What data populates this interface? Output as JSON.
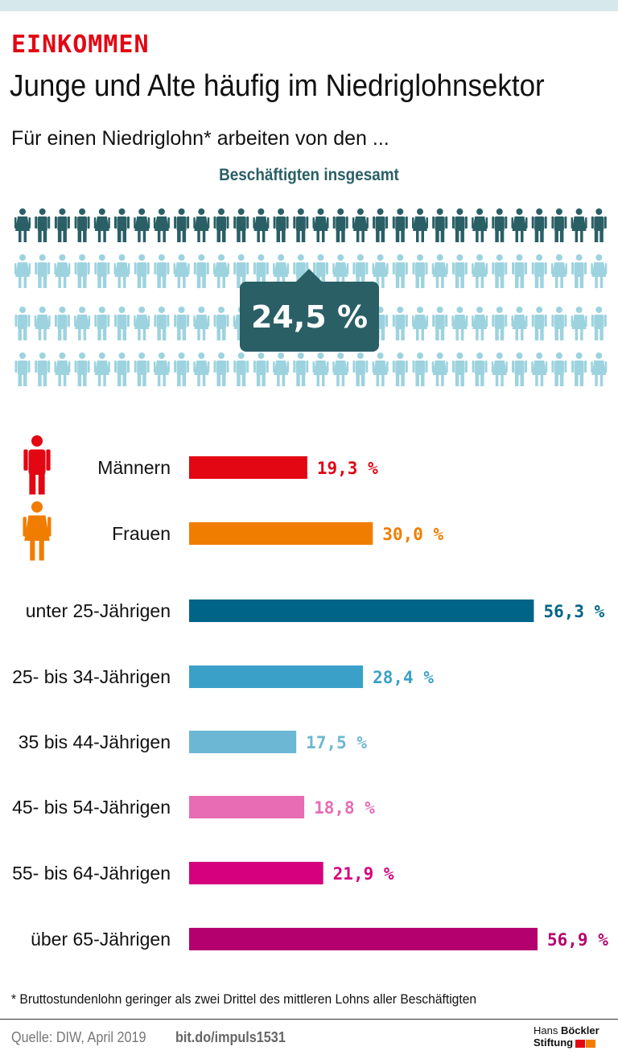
{
  "header": {
    "kicker": "EINKOMMEN",
    "title": "Junge und Alte häufig im Niedriglohnsektor",
    "subtitle": "Für einen Niedriglohn* arbeiten von den ..."
  },
  "total": {
    "label": "Beschäftigten insgesamt",
    "value_label": "24,5 %",
    "value": 24.5,
    "dark_color": "#2a5f66",
    "light_color": "#9dd3df"
  },
  "chart_data": {
    "type": "bar",
    "orientation": "horizontal",
    "categories": [
      "Männern",
      "Frauen",
      "unter 25-Jährigen",
      "25- bis 34-Jährigen",
      "35 bis 44-Jährigen",
      "45- bis 54-Jährigen",
      "55- bis 64-Jährigen",
      "über 65-Jährigen"
    ],
    "values": [
      19.3,
      30.0,
      56.3,
      28.4,
      17.5,
      18.8,
      21.9,
      56.9
    ],
    "value_labels": [
      "19,3 %",
      "30,0 %",
      "56,3 %",
      "28,4 %",
      "17,5 %",
      "18,8 %",
      "21,9 %",
      "56,9 %"
    ],
    "colors": [
      "#e30613",
      "#f07d00",
      "#006488",
      "#3aa0c8",
      "#6cb7d3",
      "#e86cb4",
      "#d6007e",
      "#b4006e"
    ],
    "icons": [
      "male-person-icon",
      "female-person-icon",
      null,
      null,
      null,
      null,
      null,
      null
    ],
    "unit": "%"
  },
  "footer": {
    "footnote": "* Bruttostundenlohn geringer als zwei Drittel des mittleren Lohns aller Beschäftigten",
    "source": "Quelle: DIW, April 2019",
    "link": "bit.do/impuls1531",
    "logo_line1a": "Hans ",
    "logo_line1b": "Böckler",
    "logo_line2": "Stiftung",
    "logo_colors": [
      "#e30613",
      "#f07d00"
    ]
  }
}
